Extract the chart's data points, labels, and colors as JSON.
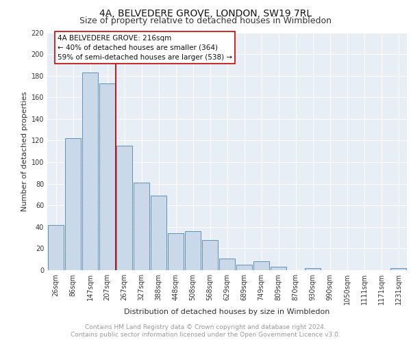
{
  "title": "4A, BELVEDERE GROVE, LONDON, SW19 7RL",
  "subtitle": "Size of property relative to detached houses in Wimbledon",
  "xlabel": "Distribution of detached houses by size in Wimbledon",
  "ylabel": "Number of detached properties",
  "bar_labels": [
    "26sqm",
    "86sqm",
    "147sqm",
    "207sqm",
    "267sqm",
    "327sqm",
    "388sqm",
    "448sqm",
    "508sqm",
    "568sqm",
    "629sqm",
    "689sqm",
    "749sqm",
    "809sqm",
    "870sqm",
    "930sqm",
    "990sqm",
    "1050sqm",
    "1111sqm",
    "1171sqm",
    "1231sqm"
  ],
  "bar_values": [
    42,
    122,
    183,
    173,
    115,
    81,
    69,
    34,
    36,
    28,
    11,
    5,
    8,
    3,
    0,
    2,
    0,
    0,
    0,
    0,
    2
  ],
  "bar_color": "#c9d9ea",
  "bar_edge_color": "#6090b8",
  "vline_x": 3.5,
  "vline_color": "#cc0000",
  "annotation_box_text": "4A BELVEDERE GROVE: 216sqm\n← 40% of detached houses are smaller (364)\n59% of semi-detached houses are larger (538) →",
  "annotation_box_color": "#cc0000",
  "ylim": [
    0,
    220
  ],
  "yticks": [
    0,
    20,
    40,
    60,
    80,
    100,
    120,
    140,
    160,
    180,
    200,
    220
  ],
  "background_color": "#e8eef6",
  "footer_line1": "Contains HM Land Registry data © Crown copyright and database right 2024.",
  "footer_line2": "Contains public sector information licensed under the Open Government Licence v3.0.",
  "title_fontsize": 10,
  "subtitle_fontsize": 9,
  "axis_label_fontsize": 8,
  "tick_fontsize": 7,
  "annotation_fontsize": 7.5,
  "footer_fontsize": 6.5
}
